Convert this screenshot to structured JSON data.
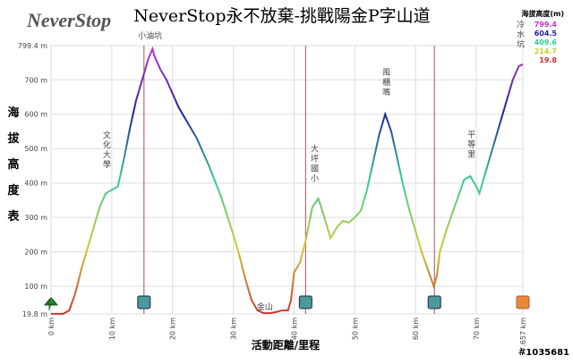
{
  "chart_data": {
    "type": "line",
    "logo": "NeverStop",
    "title": "NeverStop永不放棄-挑戰陽金P字山道",
    "y_label": "海拔高度表",
    "x_label": "活動距離/里程",
    "watermark": "#1035681",
    "legend": {
      "title": "海拔高度(m)",
      "stops": [
        {
          "value": 799.4,
          "color": "#cc33cc"
        },
        {
          "value": 604.5,
          "color": "#22229a"
        },
        {
          "value": 409.6,
          "color": "#33cc99"
        },
        {
          "value": 214.7,
          "color": "#cccc33"
        },
        {
          "value": 19.8,
          "color": "#cc3333"
        }
      ]
    },
    "xlim": [
      0,
      77.657
    ],
    "ylim": [
      19.8,
      799.4
    ],
    "xticks": [
      {
        "value": 0,
        "label": "0 km"
      },
      {
        "value": 10,
        "label": "10 km"
      },
      {
        "value": 20,
        "label": "20 km"
      },
      {
        "value": 30,
        "label": "30 km"
      },
      {
        "value": 40,
        "label": "40 km"
      },
      {
        "value": 50,
        "label": "50 km"
      },
      {
        "value": 60,
        "label": "60 km"
      },
      {
        "value": 70,
        "label": "70 km"
      },
      {
        "value": 77.657,
        "label": "77.657 km"
      }
    ],
    "yticks": [
      {
        "value": 19.8,
        "label": "19.8 m"
      },
      {
        "value": 100,
        "label": "100 m"
      },
      {
        "value": 200,
        "label": "200 m"
      },
      {
        "value": 300,
        "label": "300 m"
      },
      {
        "value": 400,
        "label": "400 m"
      },
      {
        "value": 500,
        "label": "500 m"
      },
      {
        "value": 600,
        "label": "600 m"
      },
      {
        "value": 700,
        "label": "700 m"
      },
      {
        "value": 799.4,
        "label": "799.4 m"
      }
    ],
    "grid": true,
    "marker_lines": [
      15.3,
      41.9,
      63.1
    ],
    "annotations": [
      {
        "text": "小油坑",
        "x": 16.3,
        "y": 799.4,
        "vertical": false
      },
      {
        "text": "文化大學",
        "x": 9.2,
        "y": 420,
        "vertical": true
      },
      {
        "text": "金山",
        "x": 35.2,
        "y": 22,
        "vertical": false
      },
      {
        "text": "大坪國小",
        "x": 43.4,
        "y": 380,
        "vertical": true
      },
      {
        "text": "風櫃嘴",
        "x": 55.2,
        "y": 630,
        "vertical": true
      },
      {
        "text": "平等里",
        "x": 69.2,
        "y": 450,
        "vertical": true
      },
      {
        "text": "冷水坑",
        "x": 77.3,
        "y": 770,
        "vertical": true
      }
    ],
    "series": [
      {
        "name": "海拔高度",
        "x": [
          0,
          2,
          3,
          4,
          5,
          6,
          7,
          8,
          9,
          10,
          11,
          12,
          13,
          14,
          15,
          16,
          16.7,
          17,
          18,
          19,
          20,
          21,
          22,
          24,
          26,
          28,
          30,
          31,
          32,
          33,
          34,
          35,
          36,
          37,
          38,
          39,
          39.5,
          40,
          41,
          42,
          43,
          44,
          45,
          46,
          47,
          48,
          49,
          50,
          51,
          52,
          53,
          54,
          55,
          56,
          57,
          58,
          59,
          60,
          61,
          62,
          63,
          63.5,
          64,
          65,
          66,
          67,
          68,
          69,
          70,
          70.5,
          71,
          72,
          73,
          74,
          75,
          76,
          77,
          77.657
        ],
        "values": [
          20,
          20,
          30,
          80,
          150,
          210,
          270,
          330,
          370,
          380,
          390,
          470,
          560,
          640,
          700,
          760,
          790,
          770,
          730,
          700,
          660,
          620,
          590,
          530,
          450,
          360,
          250,
          190,
          120,
          60,
          30,
          22,
          22,
          25,
          30,
          30,
          60,
          140,
          170,
          240,
          330,
          355,
          300,
          240,
          270,
          290,
          285,
          300,
          320,
          380,
          460,
          540,
          600,
          550,
          470,
          390,
          320,
          260,
          200,
          150,
          100,
          130,
          200,
          260,
          310,
          360,
          410,
          420,
          390,
          370,
          400,
          460,
          520,
          580,
          640,
          700,
          740,
          745
        ]
      }
    ]
  }
}
